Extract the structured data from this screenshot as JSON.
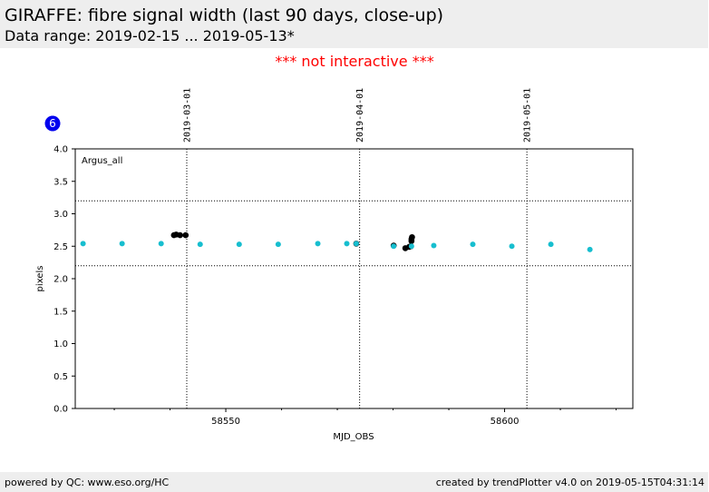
{
  "header": {
    "title": "GIRAFFE: fibre signal width (last 90 days, close-up)",
    "subtitle": "Data range: 2019-02-15 ... 2019-05-13*"
  },
  "notice": "*** not interactive ***",
  "badge": {
    "label": "6",
    "color": "#0000ee"
  },
  "footer": {
    "left": "powered by QC: www.eso.org/HC",
    "right": "created by trendPlotter v4.0 on 2019-05-15T04:31:14"
  },
  "chart_data": {
    "type": "scatter",
    "xlabel": "MJD_OBS",
    "ylabel": "pixels",
    "xlim": [
      58523,
      58623
    ],
    "ylim": [
      0.0,
      4.0
    ],
    "x_major_ticks": [
      58550,
      58600
    ],
    "x_minor_ticks": [
      58530,
      58540,
      58560,
      58570,
      58580,
      58590,
      58610,
      58620
    ],
    "y_ticks": [
      0.0,
      0.5,
      1.0,
      1.5,
      2.0,
      2.5,
      3.0,
      3.5,
      4.0
    ],
    "y_tick_labels": [
      "0.0",
      "0.5",
      "1.0",
      "1.5",
      "2.0",
      "2.5",
      "3.0",
      "3.5",
      "4.0"
    ],
    "date_markers": [
      {
        "label": "2019-03-01",
        "mjd": 58543
      },
      {
        "label": "2019-04-01",
        "mjd": 58574
      },
      {
        "label": "2019-05-01",
        "mjd": 58604
      }
    ],
    "threshold_lines": [
      2.2,
      3.2
    ],
    "panel_label": "Argus_all",
    "grid": false,
    "series": [
      {
        "color": "#000000",
        "points": [
          [
            58540.7,
            2.67
          ],
          [
            58541.1,
            2.68
          ],
          [
            58541.8,
            2.67
          ],
          [
            58542.8,
            2.67
          ],
          [
            58573.4,
            2.54
          ],
          [
            58580.1,
            2.51
          ],
          [
            58582.2,
            2.47
          ],
          [
            58582.9,
            2.49
          ],
          [
            58583.2,
            2.5
          ],
          [
            58583.3,
            2.58
          ],
          [
            58583.3,
            2.61
          ],
          [
            58583.4,
            2.64
          ]
        ]
      },
      {
        "color": "#17becf",
        "points": [
          [
            58524.4,
            2.54
          ],
          [
            58531.4,
            2.54
          ],
          [
            58538.4,
            2.54
          ],
          [
            58545.4,
            2.53
          ],
          [
            58552.4,
            2.53
          ],
          [
            58559.4,
            2.53
          ],
          [
            58566.5,
            2.54
          ],
          [
            58571.7,
            2.54
          ],
          [
            58573.4,
            2.54
          ],
          [
            58580.1,
            2.5
          ],
          [
            58583.3,
            2.5
          ],
          [
            58587.3,
            2.51
          ],
          [
            58594.3,
            2.53
          ],
          [
            58601.3,
            2.5
          ],
          [
            58608.3,
            2.53
          ],
          [
            58615.3,
            2.45
          ]
        ]
      }
    ]
  }
}
